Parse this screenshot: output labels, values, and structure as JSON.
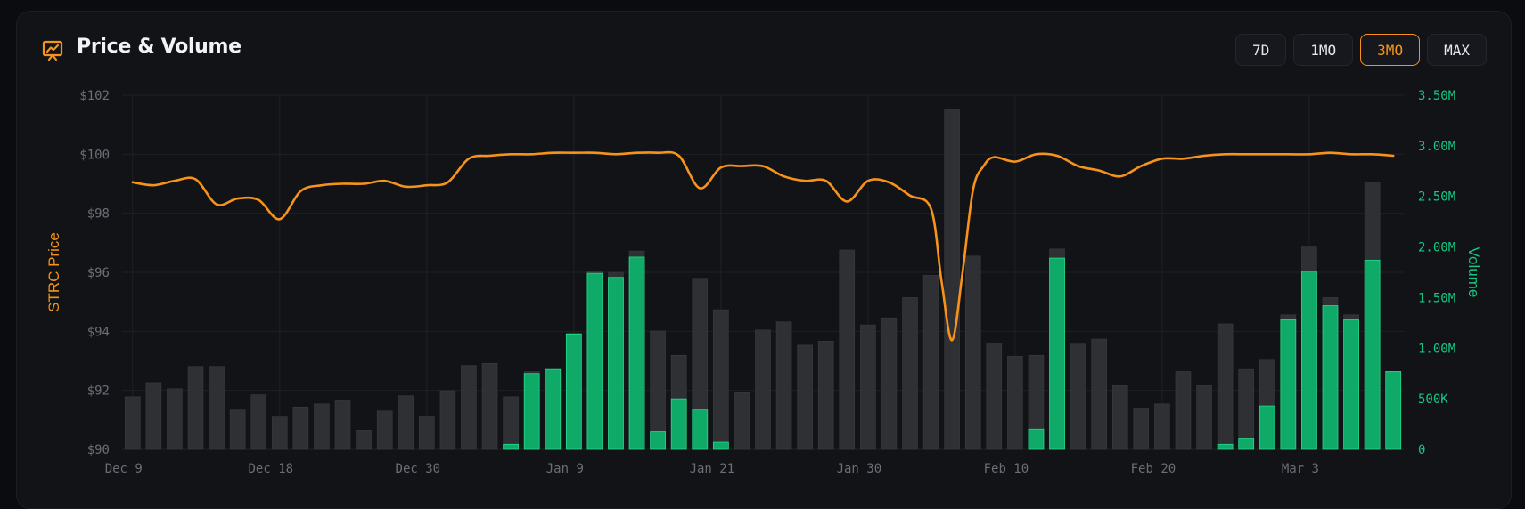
{
  "header": {
    "title": "Price & Volume",
    "icon": "presentation-chart-icon",
    "ranges": [
      {
        "label": "7D",
        "active": false
      },
      {
        "label": "1MO",
        "active": false
      },
      {
        "label": "3MO",
        "active": true
      },
      {
        "label": "MAX",
        "active": false
      }
    ]
  },
  "colors": {
    "price": "#f7931a",
    "volume_up": "#0fa968",
    "volume_total": "#2f3034",
    "grid": "#1f2126",
    "tick_left": "#6b6e76",
    "tick_right": "#16c784"
  },
  "chart_data": {
    "type": "bar+line",
    "y_left_label": "STRC Price",
    "y_right_label": "Volume",
    "y_left_ticks": [
      "$90",
      "$92",
      "$94",
      "$96",
      "$98",
      "$100",
      "$102"
    ],
    "y_left_range": [
      90,
      102
    ],
    "y_right_ticks": [
      "0",
      "500K",
      "1.00M",
      "1.50M",
      "2.00M",
      "2.50M",
      "3.00M",
      "3.50M"
    ],
    "y_right_range": [
      0,
      3500000
    ],
    "x_ticks": [
      {
        "label": "Dec 9",
        "day": 0
      },
      {
        "label": "Dec 18",
        "day": 7
      },
      {
        "label": "Dec 30",
        "day": 14
      },
      {
        "label": "Jan 9",
        "day": 21
      },
      {
        "label": "Jan 21",
        "day": 28
      },
      {
        "label": "Jan 30",
        "day": 35
      },
      {
        "label": "Feb 10",
        "day": 42
      },
      {
        "label": "Feb 20",
        "day": 49
      },
      {
        "label": "Mar 3",
        "day": 56
      }
    ],
    "days_total": 61,
    "volume_total": [
      520000,
      660000,
      600000,
      820000,
      820000,
      390000,
      540000,
      320000,
      420000,
      450000,
      480000,
      190000,
      380000,
      530000,
      330000,
      580000,
      830000,
      850000,
      520000,
      770000,
      790000,
      1150000,
      1760000,
      1750000,
      1960000,
      1170000,
      930000,
      1690000,
      1380000,
      560000,
      1180000,
      1260000,
      1030000,
      1070000,
      1970000,
      1230000,
      1300000,
      1500000,
      1720000,
      3360000,
      1910000,
      1050000,
      920000,
      930000,
      1980000,
      1040000,
      1090000,
      630000,
      410000,
      450000,
      770000,
      630000,
      1240000,
      790000,
      890000,
      1330000,
      2000000,
      1500000,
      1330000,
      2640000,
      770000
    ],
    "volume_up": [
      0,
      0,
      0,
      0,
      0,
      0,
      0,
      0,
      0,
      0,
      0,
      0,
      0,
      0,
      0,
      0,
      0,
      0,
      50000,
      750000,
      790000,
      1140000,
      1740000,
      1700000,
      1900000,
      180000,
      500000,
      390000,
      70000,
      0,
      0,
      0,
      0,
      0,
      0,
      0,
      0,
      0,
      0,
      0,
      0,
      0,
      0,
      200000,
      1890000,
      0,
      0,
      0,
      0,
      0,
      0,
      0,
      50000,
      110000,
      430000,
      1280000,
      1760000,
      1420000,
      1280000,
      1870000,
      770000
    ],
    "price": [
      [
        0,
        99.05
      ],
      [
        1,
        98.95
      ],
      [
        2,
        99.1
      ],
      [
        3,
        99.15
      ],
      [
        4,
        98.3
      ],
      [
        5,
        98.5
      ],
      [
        6,
        98.45
      ],
      [
        7,
        97.8
      ],
      [
        8,
        98.75
      ],
      [
        9,
        98.95
      ],
      [
        10,
        99
      ],
      [
        11,
        99
      ],
      [
        12,
        99.1
      ],
      [
        13,
        98.9
      ],
      [
        14,
        98.95
      ],
      [
        15,
        99.05
      ],
      [
        16,
        99.85
      ],
      [
        17,
        99.95
      ],
      [
        18,
        100
      ],
      [
        19,
        100
      ],
      [
        20,
        100.05
      ],
      [
        21,
        100.05
      ],
      [
        22,
        100.05
      ],
      [
        23,
        100
      ],
      [
        24,
        100.05
      ],
      [
        25,
        100.05
      ],
      [
        26,
        99.95
      ],
      [
        27,
        98.85
      ],
      [
        28,
        99.55
      ],
      [
        29,
        99.6
      ],
      [
        30,
        99.6
      ],
      [
        31,
        99.25
      ],
      [
        32,
        99.1
      ],
      [
        33,
        99.1
      ],
      [
        34,
        98.4
      ],
      [
        35,
        99.1
      ],
      [
        36,
        99.05
      ],
      [
        37,
        98.6
      ],
      [
        38,
        98.15
      ],
      [
        38.5,
        95.7
      ],
      [
        39,
        93.7
      ],
      [
        39.5,
        96
      ],
      [
        40,
        98.8
      ],
      [
        40.5,
        99.6
      ],
      [
        41,
        99.9
      ],
      [
        42,
        99.75
      ],
      [
        43,
        100
      ],
      [
        44,
        99.95
      ],
      [
        45,
        99.6
      ],
      [
        46,
        99.45
      ],
      [
        47,
        99.25
      ],
      [
        48,
        99.6
      ],
      [
        49,
        99.85
      ],
      [
        50,
        99.85
      ],
      [
        51,
        99.95
      ],
      [
        52,
        100
      ],
      [
        53,
        100
      ],
      [
        54,
        100
      ],
      [
        55,
        100
      ],
      [
        56,
        100
      ],
      [
        57,
        100.05
      ],
      [
        58,
        100
      ],
      [
        59,
        100
      ],
      [
        60,
        99.95
      ]
    ]
  }
}
